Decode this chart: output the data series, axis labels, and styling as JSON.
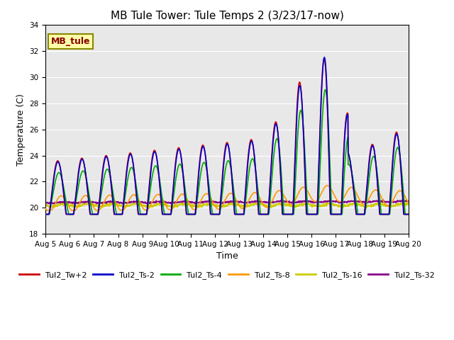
{
  "title": "MB Tule Tower: Tule Temps 2 (3/23/17-now)",
  "xlabel": "Time",
  "ylabel": "Temperature (C)",
  "ylim": [
    18,
    34
  ],
  "yticks": [
    18,
    20,
    22,
    24,
    26,
    28,
    30,
    32,
    34
  ],
  "xlim": [
    0,
    15
  ],
  "xtick_labels": [
    "Aug 5",
    "Aug 6",
    "Aug 7",
    "Aug 8",
    "Aug 9",
    "Aug 10",
    "Aug 11",
    "Aug 12",
    "Aug 13",
    "Aug 14",
    "Aug 15",
    "Aug 16",
    "Aug 17",
    "Aug 18",
    "Aug 19",
    "Aug 20"
  ],
  "background_color": "#e8e8e8",
  "figwidth": 6.4,
  "figheight": 4.8,
  "dpi": 100,
  "series": {
    "Tul2_Tw+2": {
      "color": "#cc0000",
      "lw": 1.2
    },
    "Tul2_Ts-2": {
      "color": "#0000cc",
      "lw": 1.2
    },
    "Tul2_Ts-4": {
      "color": "#00aa00",
      "lw": 1.2
    },
    "Tul2_Ts-8": {
      "color": "#ff9900",
      "lw": 1.2
    },
    "Tul2_Ts-16": {
      "color": "#cccc00",
      "lw": 1.2
    },
    "Tul2_Ts-32": {
      "color": "#880088",
      "lw": 1.2
    }
  },
  "annotation_text": "MB_tule",
  "annotation_color": "#880000",
  "annotation_bg": "#ffffaa",
  "annotation_border": "#888800"
}
